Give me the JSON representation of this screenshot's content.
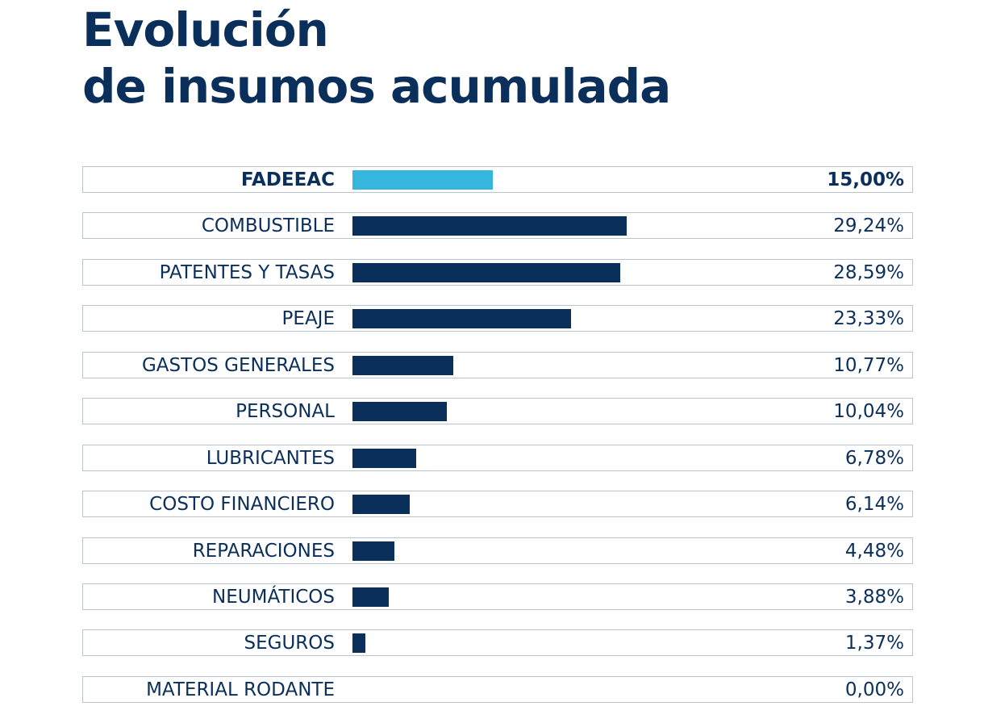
{
  "chart_data": {
    "type": "bar",
    "orientation": "horizontal",
    "title_line1": "Evolución",
    "title_line2": "de insumos acumulada",
    "categories": [
      "FADEEAC",
      "COMBUSTIBLE",
      "PATENTES Y TASAS",
      "PEAJE",
      "GASTOS GENERALES",
      "PERSONAL",
      "LUBRICANTES",
      "COSTO FINANCIERO",
      "REPARACIONES",
      "NEUMÁTICOS",
      "SEGUROS",
      "MATERIAL RODANTE"
    ],
    "values": [
      15.0,
      29.24,
      28.59,
      23.33,
      10.77,
      10.04,
      6.78,
      6.14,
      4.48,
      3.88,
      1.37,
      0.0
    ],
    "value_labels": [
      "15,00%",
      "29,24%",
      "28,59%",
      "23,33%",
      "10,77%",
      "10,04%",
      "6,78%",
      "6,14%",
      "4,48%",
      "3,88%",
      "1,37%",
      "0,00%"
    ],
    "highlight": "FADEEAC",
    "colors": {
      "highlight": "#36b6df",
      "default": "#0b2f5b",
      "border": "#b9c3d1"
    },
    "grid": false,
    "legend": "none"
  }
}
